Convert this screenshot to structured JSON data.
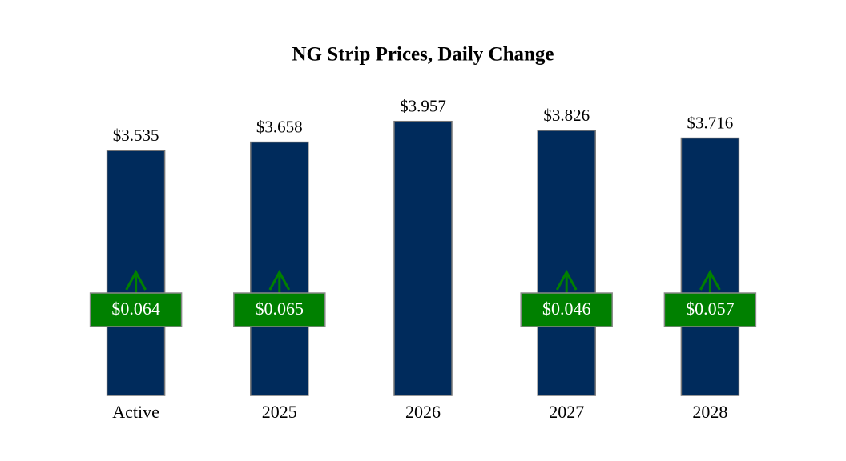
{
  "chart_data": {
    "type": "bar",
    "title": "NG Strip Prices, Daily Change",
    "categories": [
      "Active",
      "2025",
      "2026",
      "2027",
      "2028"
    ],
    "values": [
      3.535,
      3.658,
      3.957,
      3.826,
      3.716
    ],
    "value_labels": [
      "$3.535",
      "$3.658",
      "$3.957",
      "$3.826",
      "$3.716"
    ],
    "color": "#002b5c",
    "changes": [
      0.064,
      0.065,
      null,
      0.046,
      0.057
    ],
    "change_labels": [
      "$0.064",
      "$0.065",
      null,
      "$0.046",
      "$0.057"
    ],
    "change_color": "#008000",
    "ylim": [
      0,
      4
    ]
  }
}
